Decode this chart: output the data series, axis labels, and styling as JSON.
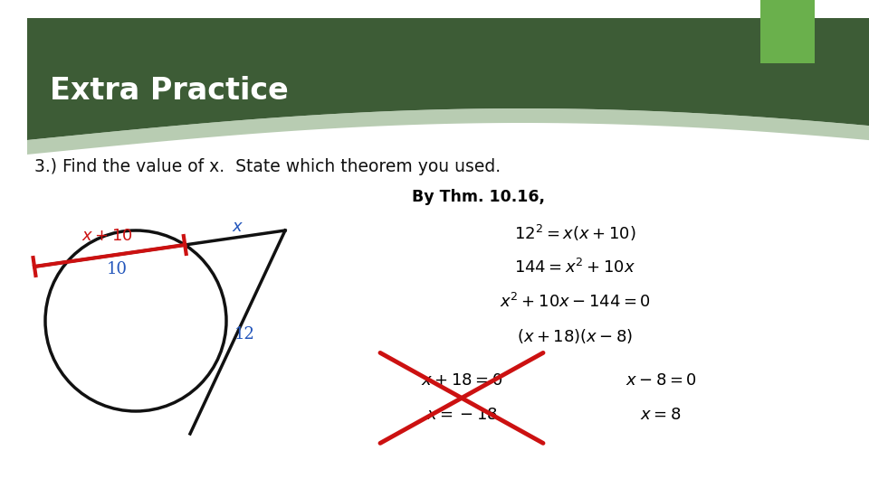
{
  "title": "Extra Practice",
  "title_bg_dark": "#3d5c36",
  "title_bg_light": "#5a7a52",
  "title_text_color": "#ffffff",
  "subtitle": "3.) Find the value of x.  State which theorem you used.",
  "bg_color": "#ffffff",
  "green_tab_color": "#6ab04c",
  "theorem_label": "By Thm. 10.16,",
  "eq1": "$12^2 = x(x + 10)$",
  "eq2": "$144 = x^2 + 10x$",
  "eq3": "$x^2 + 10x - 144 = 0$",
  "eq4": "$(x + 18)(x - 8)$",
  "eq5a": "$x + 18 = 0$",
  "eq5b": "$x - 8 = 0$",
  "eq6a": "$x = -18$",
  "eq6b": "$x = 8$",
  "label_x10": "$x + 10$",
  "label_x": "$x$",
  "label_10": "10",
  "label_12": "12",
  "red_color": "#cc1111",
  "blue_color": "#2255bb",
  "black_color": "#111111",
  "gray_swoosh": "#8aab80"
}
